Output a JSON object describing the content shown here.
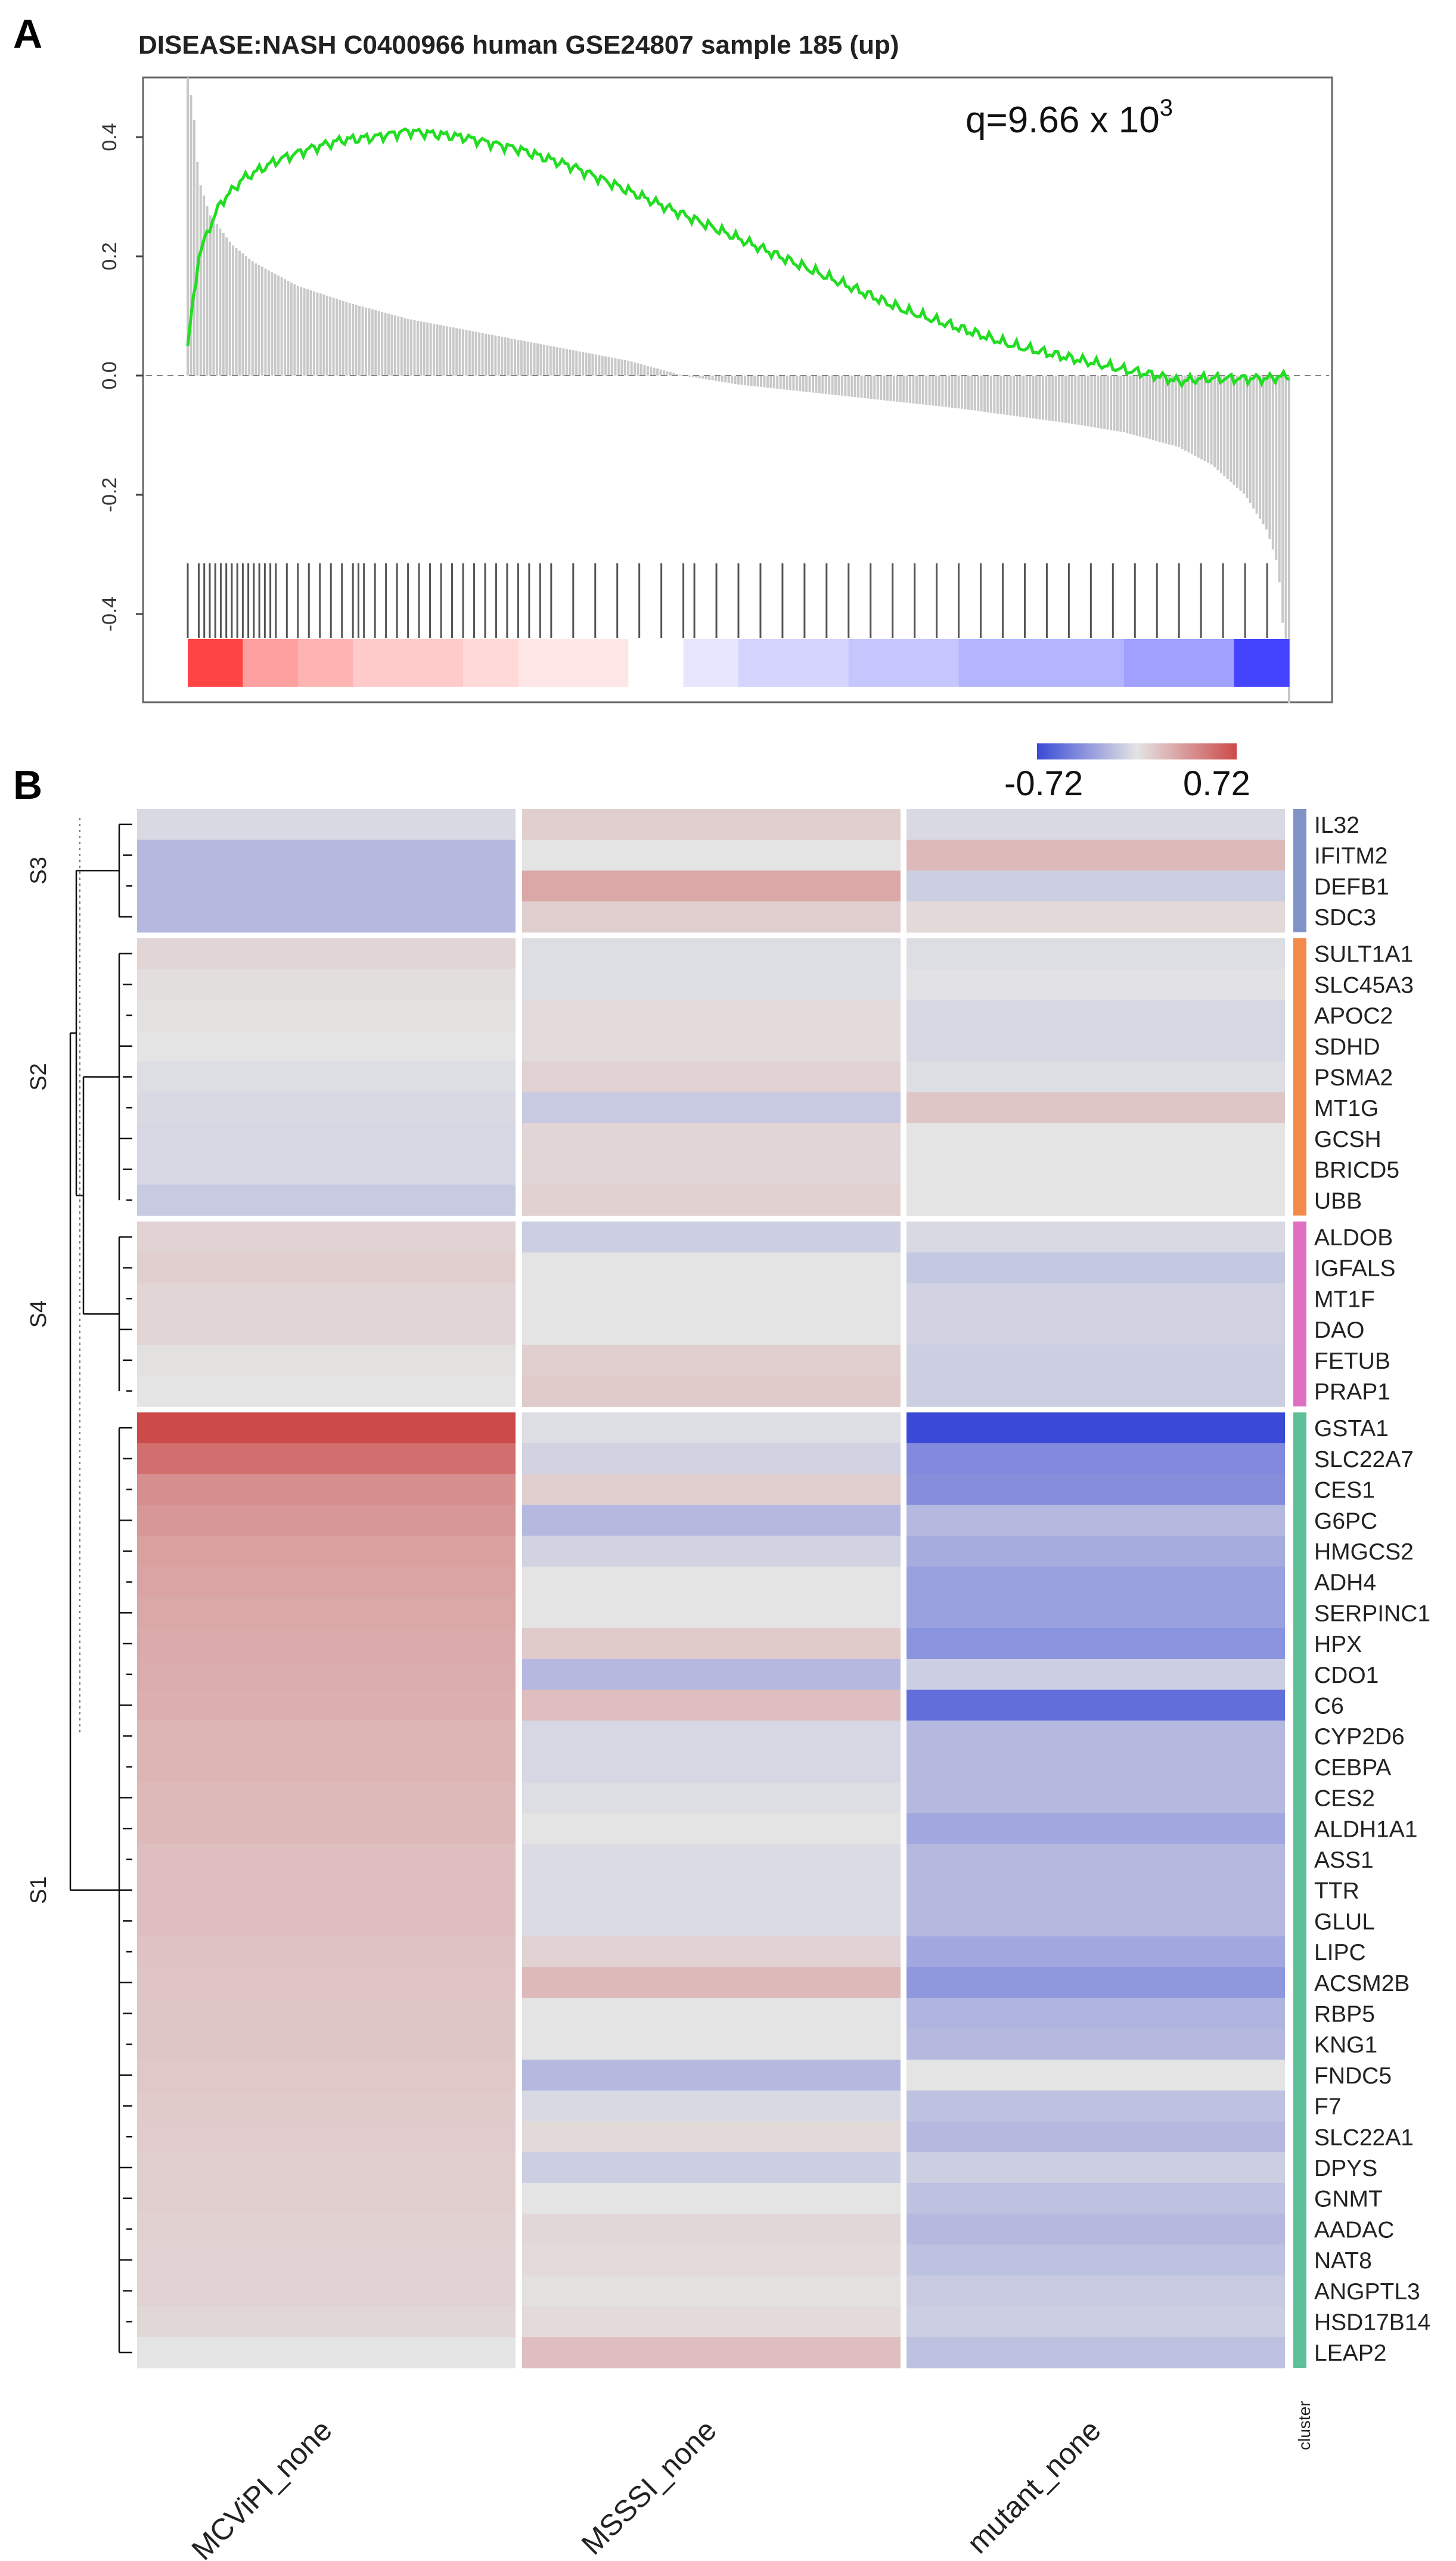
{
  "panel_a": {
    "label": "A",
    "title": "DISEASE:NASH C0400966 human GSE24807 sample 185 (up)",
    "q_text": "q=9.66 x 10",
    "q_exp": "3"
  },
  "panel_b": {
    "label": "B",
    "legend_min_label": "-0.72",
    "legend_max_label": "0.72",
    "cluster_axis_label": "cluster"
  },
  "chart_data": [
    {
      "type": "line",
      "title": "DISEASE:NASH C0400966 human GSE24807 sample 185 (up)",
      "annotation": "q=9.66 x 10^3",
      "xlim": [
        0,
        1
      ],
      "ylim": [
        -0.55,
        0.5
      ],
      "yticks": [
        0.4,
        0.2,
        0.0,
        -0.2,
        -0.4
      ],
      "ytick_labels": [
        "0.4",
        "0.2",
        "0.0",
        "-0.2",
        "-0.4"
      ],
      "series": [
        {
          "name": "running enrichment score",
          "color": "#22dd22",
          "x": [
            0,
            0.01,
            0.02,
            0.03,
            0.05,
            0.08,
            0.11,
            0.14,
            0.17,
            0.2,
            0.25,
            0.3,
            0.35,
            0.4,
            0.45,
            0.5,
            0.55,
            0.6,
            0.65,
            0.7,
            0.75,
            0.8,
            0.85,
            0.88,
            0.9,
            0.92,
            0.95,
            0.98,
            1.0
          ],
          "y": [
            0.05,
            0.2,
            0.25,
            0.29,
            0.33,
            0.36,
            0.38,
            0.395,
            0.4,
            0.41,
            0.4,
            0.38,
            0.35,
            0.31,
            0.27,
            0.23,
            0.19,
            0.15,
            0.11,
            0.08,
            0.05,
            0.03,
            0.01,
            0.0,
            -0.01,
            -0.005,
            -0.005,
            -0.005,
            0.0
          ]
        },
        {
          "name": "ranked gene-level statistic",
          "color": "#c8c8c8",
          "x": [
            0,
            0.005,
            0.01,
            0.02,
            0.04,
            0.06,
            0.1,
            0.15,
            0.2,
            0.3,
            0.4,
            0.45,
            0.5,
            0.6,
            0.7,
            0.8,
            0.85,
            0.9,
            0.93,
            0.96,
            0.98,
            0.99,
            1.0
          ],
          "y": [
            0.5,
            0.45,
            0.33,
            0.27,
            0.22,
            0.19,
            0.15,
            0.12,
            0.095,
            0.06,
            0.025,
            0.0,
            -0.015,
            -0.035,
            -0.055,
            -0.08,
            -0.095,
            -0.12,
            -0.15,
            -0.2,
            -0.26,
            -0.32,
            -0.55
          ]
        }
      ],
      "gene_hit_positions": [
        0.0,
        0.01,
        0.015,
        0.02,
        0.025,
        0.03,
        0.035,
        0.04,
        0.045,
        0.05,
        0.055,
        0.06,
        0.065,
        0.07,
        0.075,
        0.08,
        0.09,
        0.1,
        0.11,
        0.12,
        0.13,
        0.14,
        0.15,
        0.155,
        0.16,
        0.17,
        0.18,
        0.19,
        0.2,
        0.21,
        0.22,
        0.23,
        0.24,
        0.25,
        0.26,
        0.27,
        0.28,
        0.29,
        0.3,
        0.31,
        0.32,
        0.33,
        0.35,
        0.37,
        0.39,
        0.41,
        0.43,
        0.45,
        0.46,
        0.48,
        0.5,
        0.52,
        0.54,
        0.56,
        0.58,
        0.6,
        0.62,
        0.64,
        0.66,
        0.68,
        0.7,
        0.72,
        0.74,
        0.76,
        0.78,
        0.8,
        0.82,
        0.84,
        0.86,
        0.88,
        0.9,
        0.92,
        0.94,
        0.96,
        0.98
      ],
      "rank_colorbar": [
        "#ff4444",
        "#ffa0a0",
        "#ffb4b4",
        "#ffcaca",
        "#ffcaca",
        "#ffd8d8",
        "#ffe6e6",
        "#ffe6e6",
        "#ffffff",
        "#e6e6ff",
        "#d4d4ff",
        "#d4d4ff",
        "#c6c6ff",
        "#c6c6ff",
        "#b4b4ff",
        "#b4b4ff",
        "#b4b4ff",
        "#a0a0ff",
        "#a0a0ff",
        "#4444ff"
      ]
    },
    {
      "type": "heatmap",
      "columns": [
        "MCViPI_none",
        "MSSSI_none",
        "mutant_none"
      ],
      "color_scale": {
        "min": -0.72,
        "max": 0.72,
        "low": "#3a4ad6",
        "mid": "#e4e4e4",
        "high": "#cc4a4a"
      },
      "clusters": [
        {
          "name": "S3",
          "color": "#7f93c6",
          "rows": [
            "IL32",
            "IFITM2",
            "DEFB1",
            "SDC3"
          ],
          "values": [
            [
              -0.05,
              0.1,
              -0.05
            ],
            [
              -0.2,
              0.0,
              0.2
            ],
            [
              -0.2,
              0.28,
              -0.1
            ],
            [
              -0.2,
              0.1,
              0.05
            ]
          ]
        },
        {
          "name": "S2",
          "color": "#f28a4c",
          "rows": [
            "SULT1A1",
            "SLC45A3",
            "APOC2",
            "SDHD",
            "PSMA2",
            "MT1G",
            "GCSH",
            "BRICD5",
            "UBB"
          ],
          "values": [
            [
              0.07,
              -0.03,
              -0.03
            ],
            [
              0.03,
              -0.03,
              -0.01
            ],
            [
              0.02,
              0.04,
              -0.06
            ],
            [
              0.0,
              0.04,
              -0.06
            ],
            [
              -0.03,
              0.08,
              -0.03
            ],
            [
              -0.05,
              -0.12,
              0.14
            ],
            [
              -0.06,
              0.07,
              0.0
            ],
            [
              -0.06,
              0.07,
              0.0
            ],
            [
              -0.12,
              0.09,
              0.0
            ]
          ]
        },
        {
          "name": "S4",
          "color": "#df6fc0",
          "rows": [
            "ALDOB",
            "IGFALS",
            "MT1F",
            "DAO",
            "FETUB",
            "PRAP1"
          ],
          "values": [
            [
              0.08,
              -0.1,
              -0.05
            ],
            [
              0.1,
              0.0,
              -0.13
            ],
            [
              0.07,
              0.0,
              -0.08
            ],
            [
              0.07,
              0.0,
              -0.08
            ],
            [
              0.02,
              0.1,
              -0.1
            ],
            [
              0.0,
              0.12,
              -0.1
            ]
          ]
        },
        {
          "name": "S1",
          "color": "#5fbf98",
          "rows": [
            "GSTA1",
            "SLC22A7",
            "CES1",
            "G6PC",
            "HMGCS2",
            "ADH4",
            "SERPINC1",
            "HPX",
            "CDO1",
            "C6",
            "CYP2D6",
            "CEBPA",
            "CES2",
            "ALDH1A1",
            "ASS1",
            "TTR",
            "GLUL",
            "LIPC",
            "ACSM2B",
            "RBP5",
            "KNG1",
            "FNDC5",
            "F7",
            "SLC22A1",
            "DPYS",
            "GNMT",
            "AADAC",
            "NAT8",
            "ANGPTL3",
            "HSD17B14",
            "LEAP2"
          ],
          "values": [
            [
              0.72,
              -0.03,
              -0.72
            ],
            [
              0.55,
              -0.08,
              -0.42
            ],
            [
              0.4,
              0.1,
              -0.4
            ],
            [
              0.36,
              -0.2,
              -0.2
            ],
            [
              0.32,
              -0.08,
              -0.26
            ],
            [
              0.3,
              0.0,
              -0.32
            ],
            [
              0.28,
              0.0,
              -0.32
            ],
            [
              0.27,
              0.12,
              -0.38
            ],
            [
              0.26,
              -0.2,
              -0.1
            ],
            [
              0.25,
              0.18,
              -0.55
            ],
            [
              0.22,
              -0.06,
              -0.2
            ],
            [
              0.22,
              -0.06,
              -0.2
            ],
            [
              0.2,
              -0.03,
              -0.2
            ],
            [
              0.2,
              0.0,
              -0.28
            ],
            [
              0.18,
              -0.04,
              -0.2
            ],
            [
              0.18,
              -0.04,
              -0.2
            ],
            [
              0.18,
              -0.04,
              -0.2
            ],
            [
              0.16,
              0.08,
              -0.28
            ],
            [
              0.15,
              0.2,
              -0.36
            ],
            [
              0.14,
              0.0,
              -0.22
            ],
            [
              0.14,
              0.0,
              -0.2
            ],
            [
              0.13,
              -0.2,
              0.0
            ],
            [
              0.12,
              -0.05,
              -0.16
            ],
            [
              0.11,
              0.05,
              -0.2
            ],
            [
              0.1,
              -0.1,
              -0.1
            ],
            [
              0.1,
              0.0,
              -0.16
            ],
            [
              0.09,
              0.06,
              -0.2
            ],
            [
              0.08,
              0.04,
              -0.16
            ],
            [
              0.08,
              0.02,
              -0.12
            ],
            [
              0.06,
              0.04,
              -0.1
            ],
            [
              0.0,
              0.18,
              -0.16
            ]
          ]
        }
      ]
    }
  ]
}
